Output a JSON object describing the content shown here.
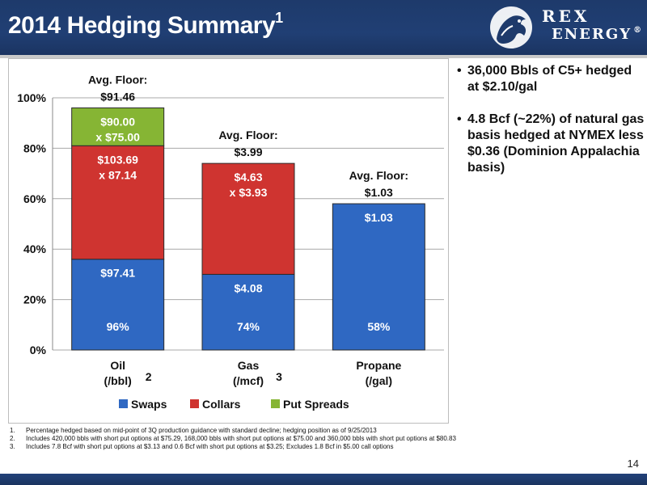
{
  "header": {
    "title": "2014 Hedging Summary",
    "title_sup": "1",
    "logo_top": "REX",
    "logo_bottom": "ENERGY",
    "logo_reg": "®"
  },
  "chart_data": {
    "type": "bar",
    "stacked": true,
    "categories": [
      {
        "line1": "Oil",
        "line2": "(/bbl)",
        "note": "2"
      },
      {
        "line1": "Gas",
        "line2": "(/mcf)",
        "note": "3"
      },
      {
        "line1": "Propane",
        "line2": "(/gal)",
        "note": ""
      }
    ],
    "series": [
      {
        "name": "Swaps",
        "color": "#2f68c2",
        "values": [
          36,
          30,
          58
        ],
        "labels": [
          [
            "$97.41"
          ],
          [
            "$4.08"
          ],
          [
            "$1.03"
          ]
        ]
      },
      {
        "name": "Collars",
        "color": "#cf3430",
        "values": [
          45,
          44,
          0
        ],
        "labels": [
          [
            "$103.69",
            "x 87.14"
          ],
          [
            "$4.63",
            "x $3.93"
          ],
          []
        ]
      },
      {
        "name": "Put Spreads",
        "color": "#86b534",
        "values": [
          15,
          0,
          0
        ],
        "labels": [
          [
            "$90.00",
            "x $75.00"
          ],
          [],
          []
        ]
      }
    ],
    "totals": [
      "96%",
      "74%",
      "58%"
    ],
    "floor_labels": [
      [
        "Avg. Floor:",
        "$91.46"
      ],
      [
        "Avg. Floor:",
        "$3.99"
      ],
      [
        "Avg. Floor:",
        "$1.03"
      ]
    ],
    "ylim": [
      0,
      100
    ],
    "yticks": [
      0,
      20,
      40,
      60,
      80,
      100
    ],
    "ytick_labels": [
      "0%",
      "20%",
      "40%",
      "60%",
      "80%",
      "100%"
    ],
    "grid": true,
    "legend": "bottom"
  },
  "bullets": [
    "36,000 Bbls of C5+ hedged at $2.10/gal",
    "4.8 Bcf (~22%) of natural gas basis hedged at NYMEX less $0.36 (Dominion Appalachia basis)"
  ],
  "bullet_symbol": "•",
  "footnotes": [
    {
      "num": "1.",
      "text": "Percentage hedged based on mid-point of 3Q production guidance with standard decline; hedging position as of 9/25/2013"
    },
    {
      "num": "2.",
      "text": "Includes 420,000 bbls with short put options at $75.29, 168,000 bbls with short put options at $75.00 and 360,000 bbls with short put options at $80.83"
    },
    {
      "num": "3.",
      "text": "Includes 7.8 Bcf with short put options at $3.13 and 0.6 Bcf with short put options at $3.25; Excludes 1.8 Bcf in $5.00 call options"
    }
  ],
  "page_number": "14"
}
